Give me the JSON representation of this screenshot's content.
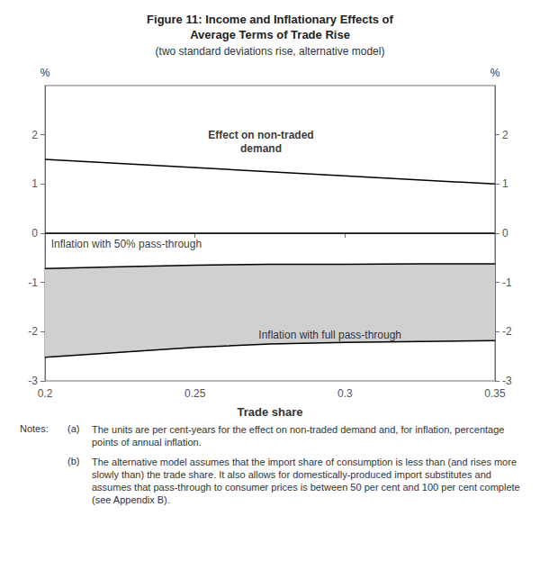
{
  "chart_data": {
    "type": "line",
    "title": "Figure 11: Income and Inflationary Effects of\nAverage Terms of Trade Rise",
    "subtitle": "(two standard deviations rise, alternative model)",
    "xlabel": "Trade share",
    "ylabel": "%",
    "y2label": "%",
    "xlim": [
      0.2,
      0.35
    ],
    "xticks": [
      0.2,
      0.25,
      0.3,
      0.35
    ],
    "ylim": [
      -3,
      3
    ],
    "yticks": [
      -3,
      -2,
      -1,
      0,
      1,
      2
    ],
    "y2lim": [
      -3,
      3
    ],
    "y2ticks": [
      -3,
      -2,
      -1,
      0,
      1,
      2
    ],
    "grid": false,
    "series": [
      {
        "type": "band",
        "color": "#d0d0d0",
        "x": [
          0.2,
          0.225,
          0.25,
          0.275,
          0.3,
          0.325,
          0.35
        ],
        "lower": [
          -2.52,
          -2.42,
          -2.32,
          -2.25,
          -2.22,
          -2.2,
          -2.18
        ],
        "upper": [
          -0.72,
          -0.68,
          -0.65,
          -0.63,
          -0.63,
          -0.62,
          -0.62
        ]
      },
      {
        "type": "line",
        "color": "#000000",
        "x": [
          0.2,
          0.35
        ],
        "values": [
          1.5,
          1.0
        ]
      },
      {
        "type": "line",
        "color": "#000000",
        "x": [
          0.2,
          0.35
        ],
        "values": [
          0.0,
          0.0
        ]
      },
      {
        "type": "line",
        "color": "#000000",
        "x": [
          0.2,
          0.225,
          0.25,
          0.275,
          0.3,
          0.325,
          0.35
        ],
        "values": [
          -0.72,
          -0.68,
          -0.65,
          -0.63,
          -0.63,
          -0.62,
          -0.62
        ]
      },
      {
        "type": "line",
        "color": "#000000",
        "x": [
          0.2,
          0.225,
          0.25,
          0.275,
          0.3,
          0.325,
          0.35
        ],
        "values": [
          -2.52,
          -2.42,
          -2.32,
          -2.25,
          -2.22,
          -2.2,
          -2.18
        ]
      }
    ],
    "annotations": [
      {
        "text": "Effect on non-traded\ndemand",
        "x": 0.272,
        "y": 1.58
      },
      {
        "text": "Inflation with 50% pass-through",
        "x": 0.202,
        "y": -0.08
      },
      {
        "text": "Inflation with full pass-through",
        "x": 0.295,
        "y": -2.07
      }
    ],
    "notes_heading": "Notes:",
    "notes": [
      {
        "label": "(a)",
        "text": "The units are per cent-years for the effect on non-traded demand and, for inflation, percentage points of annual inflation."
      },
      {
        "label": "(b)",
        "text": "The alternative model assumes that the import share of consumption is less than (and rises more slowly than) the trade share. It also allows for domestically-produced import substitutes and assumes that pass-through to consumer prices is between 50 per cent and 100 per cent complete (see Appendix B)."
      }
    ]
  }
}
